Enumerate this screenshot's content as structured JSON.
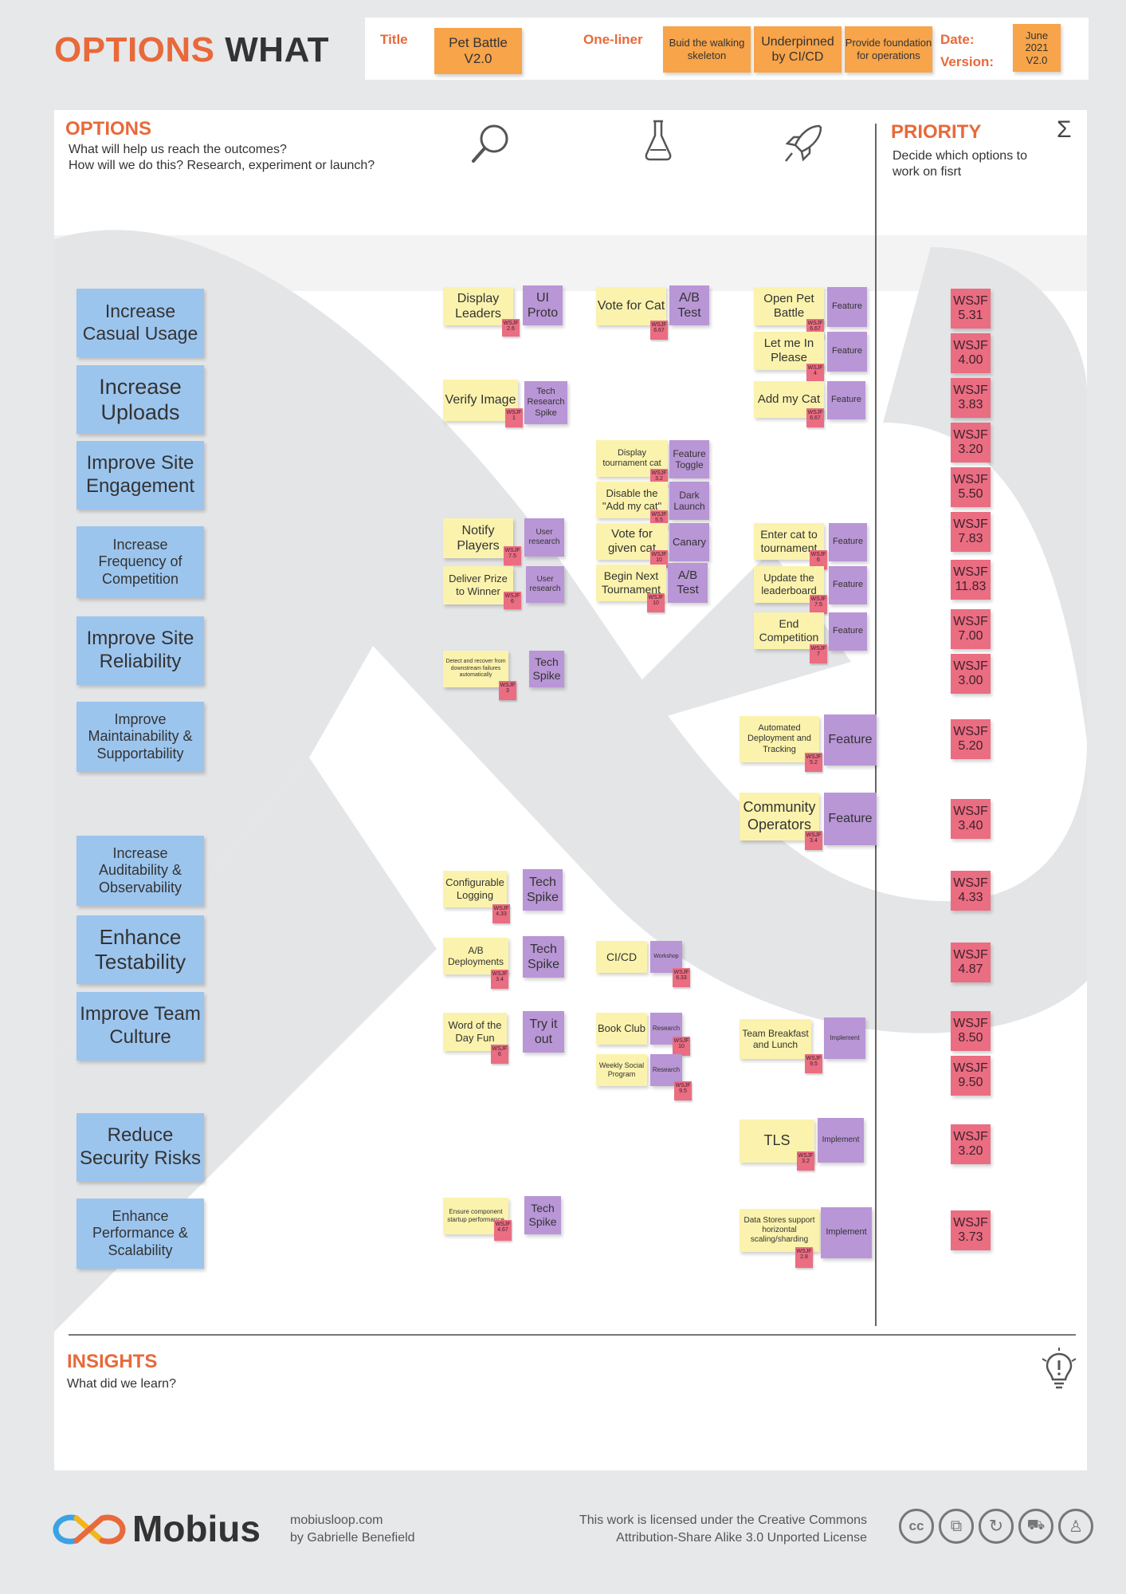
{
  "header": {
    "title_accent": "OPTIONS",
    "title_rest": "WHAT",
    "title_label": "Title",
    "title_value": "Pet Battle V2.0",
    "oneliner_label": "One-liner",
    "oneliner_notes": [
      "Buid the walking skeleton",
      "Underpinned by CI/CD",
      "Provide foundation for operations"
    ],
    "date_label": "Date:",
    "version_label": "Version:",
    "date_version_value": "June 2021 V2.0"
  },
  "options": {
    "heading": "OPTIONS",
    "subtitle_line1": "What will help us reach the outcomes?",
    "subtitle_line2": "How will we do this? Research, experiment or launch?",
    "column_icons": [
      "search-icon",
      "flask-icon",
      "rocket-icon"
    ]
  },
  "priority": {
    "heading": "PRIORITY",
    "subtitle_line1": "Decide which options to",
    "subtitle_line2": "work on fisrt",
    "icon": "sigma-icon"
  },
  "outcomes": [
    "Increase Casual Usage",
    "Increase Uploads",
    "Improve Site Engagement",
    "Increase Frequency of Competition",
    "Improve Site Reliability",
    "Improve Maintainability & Supportability",
    "Increase Auditability & Observability",
    "Enhance Testability",
    "Improve Team Culture",
    "Reduce Security Risks",
    "Enhance Performance & Scalability"
  ],
  "research": [
    {
      "option": "Display Leaders",
      "type": "UI Proto",
      "wsjf": "WSJF 2.6"
    },
    {
      "option": "Verify Image",
      "type": "Tech Research Spike",
      "wsjf": "WSJF 1"
    },
    {
      "option": "Notify Players",
      "type": "User research",
      "wsjf": "WSJF 7.5"
    },
    {
      "option": "Deliver Prize to Winner",
      "type": "User research",
      "wsjf": "WSJF 6"
    },
    {
      "option": "Detect and recover from downstream failures automatically",
      "type": "Tech Spike",
      "wsjf": "WSJF 3"
    },
    {
      "option": "Configurable Logging",
      "type": "Tech Spike",
      "wsjf": "WSJF 4.33"
    },
    {
      "option": "A/B Deployments",
      "type": "Tech Spike",
      "wsjf": "WSJF 3.4"
    },
    {
      "option": "Word of the Day Fun",
      "type": "Try it out",
      "wsjf": "WSJF 6"
    },
    {
      "option": "Ensure component startup performance",
      "type": "Tech Spike",
      "wsjf": "WSJF 4.67"
    }
  ],
  "experiment": [
    {
      "option": "Vote for Cat",
      "type": "A/B Test",
      "wsjf": "WSJF 6.67"
    },
    {
      "option": "Display tournament cat",
      "type": "Feature Toggle",
      "wsjf": "WSJF 3.2"
    },
    {
      "option": "Disable the \"Add my cat\"",
      "type": "Dark Launch",
      "wsjf": "WSJF 5.5"
    },
    {
      "option": "Vote for given cat",
      "type": "Canary",
      "wsjf": "WSJF 10"
    },
    {
      "option": "Begin Next Tournament",
      "type": "A/B Test",
      "wsjf": "WSJF 10"
    },
    {
      "option": "CI/CD",
      "type": "Workshop",
      "wsjf": "WSJF 6.33"
    },
    {
      "option": "Book Club",
      "type": "Research",
      "wsjf": "WSJF 10"
    },
    {
      "option": "Weekly Social Program",
      "type": "Research",
      "wsjf": "WSJF 9.5"
    }
  ],
  "launch": [
    {
      "option": "Open Pet Battle",
      "type": "Feature",
      "wsjf": "WSJF 6.67"
    },
    {
      "option": "Let me In Please",
      "type": "Feature",
      "wsjf": "WSJF 4"
    },
    {
      "option": "Add my Cat",
      "type": "Feature",
      "wsjf": "WSJF 6.67"
    },
    {
      "option": "Enter cat to tournament",
      "type": "Feature",
      "wsjf": "WSJF 6"
    },
    {
      "option": "Update the leaderboard",
      "type": "Feature",
      "wsjf": "WSJF 7.5"
    },
    {
      "option": "End Competition",
      "type": "Feature",
      "wsjf": "WSJF 7"
    },
    {
      "option": "Automated Deployment and Tracking",
      "type": "Feature",
      "wsjf": "WSJF 5.2"
    },
    {
      "option": "Community Operators",
      "type": "Feature",
      "wsjf": "WSJF 3.4"
    },
    {
      "option": "Team Breakfast and Lunch",
      "type": "Implement",
      "wsjf": "WSJF 9.5"
    },
    {
      "option": "TLS",
      "type": "Implement",
      "wsjf": "WSJF 3.2"
    },
    {
      "option": "Data Stores support horizontal scaling/sharding",
      "type": "Implement",
      "wsjf": "WSJF 2.8"
    }
  ],
  "priority_scores": [
    {
      "label": "WSJF",
      "value": "5.31"
    },
    {
      "label": "WSJF",
      "value": "4.00"
    },
    {
      "label": "WSJF",
      "value": "3.83"
    },
    {
      "label": "WSJF",
      "value": "3.20"
    },
    {
      "label": "WSJF",
      "value": "5.50"
    },
    {
      "label": "WSJF",
      "value": "7.83"
    },
    {
      "label": "WSJF",
      "value": "11.83"
    },
    {
      "label": "WSJF",
      "value": "7.00"
    },
    {
      "label": "WSJF",
      "value": "3.00"
    },
    {
      "label": "WSJF",
      "value": "5.20"
    },
    {
      "label": "WSJF",
      "value": "3.40"
    },
    {
      "label": "WSJF",
      "value": "4.33"
    },
    {
      "label": "WSJF",
      "value": "4.87"
    },
    {
      "label": "WSJF",
      "value": "8.50"
    },
    {
      "label": "WSJF",
      "value": "9.50"
    },
    {
      "label": "WSJF",
      "value": "3.20"
    },
    {
      "label": "WSJF",
      "value": "3.73"
    }
  ],
  "insights": {
    "heading": "INSIGHTS",
    "subtitle": "What did we learn?",
    "icon": "lightbulb-icon"
  },
  "footer": {
    "brand": "Mobius",
    "site": "mobiusloop.com",
    "author": "by Gabrielle Benefield",
    "license_line1": "This work is licensed under the Creative Commons",
    "license_line2": "Attribution-Share Alike 3.0 Unported License",
    "license_icons": [
      "cc-icon",
      "copy-icon",
      "share-alike-icon",
      "noncommercial-icon",
      "attribution-icon"
    ]
  }
}
